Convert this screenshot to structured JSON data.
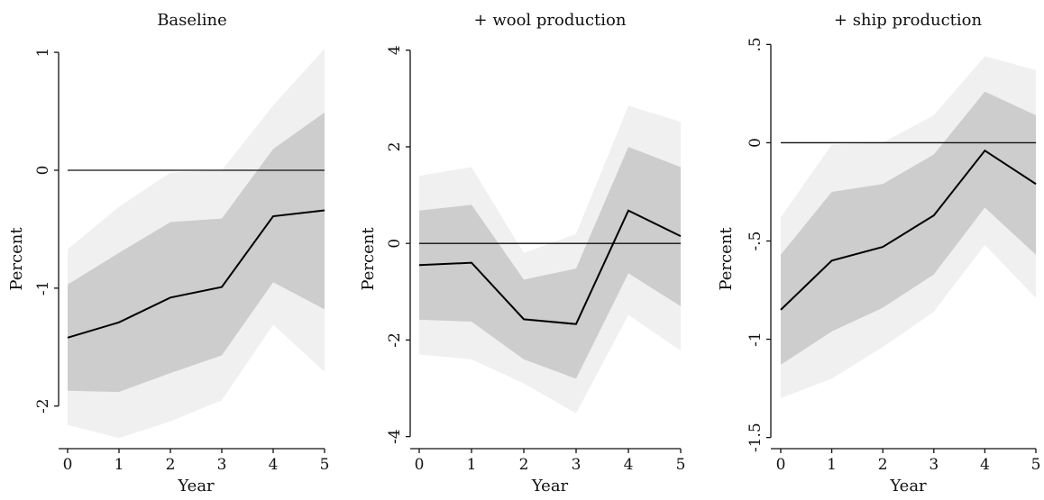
{
  "chart_data": [
    {
      "type": "line",
      "title": "Baseline",
      "xlabel": "Year",
      "ylabel": "Percent",
      "x": [
        0,
        1,
        2,
        3,
        4,
        5
      ],
      "xlim": [
        0,
        5
      ],
      "ylim": [
        -2.3,
        1.1
      ],
      "x_ticks": [
        "0",
        "1",
        "2",
        "3",
        "4",
        "5"
      ],
      "y_ticks": [
        {
          "value": -2,
          "label": "-2"
        },
        {
          "value": -1,
          "label": "-1"
        },
        {
          "value": 0,
          "label": "0"
        },
        {
          "value": 1,
          "label": "1"
        }
      ],
      "reference_line": 0,
      "series": [
        {
          "role": "estimate",
          "values": [
            -1.42,
            -1.29,
            -1.08,
            -0.99,
            -0.39,
            -0.34
          ]
        }
      ],
      "bands": [
        {
          "level": "outer",
          "lower": [
            -2.16,
            -2.27,
            -2.13,
            -1.95,
            -1.31,
            -1.71
          ],
          "upper": [
            -0.67,
            -0.31,
            -0.02,
            0.0,
            0.55,
            1.03
          ],
          "color": "#f0f0f0"
        },
        {
          "level": "inner",
          "lower": [
            -1.87,
            -1.88,
            -1.72,
            -1.57,
            -0.95,
            -1.18
          ],
          "upper": [
            -0.97,
            -0.7,
            -0.44,
            -0.41,
            0.18,
            0.49
          ],
          "color": "#cdcdcd"
        }
      ],
      "grid": false,
      "legend": "none"
    },
    {
      "type": "line",
      "title": "+ wool production",
      "xlabel": "Year",
      "ylabel": "Percent",
      "x": [
        0,
        1,
        2,
        3,
        4,
        5
      ],
      "xlim": [
        0,
        5
      ],
      "ylim": [
        -4.1,
        4.2
      ],
      "x_ticks": [
        "0",
        "1",
        "2",
        "3",
        "4",
        "5"
      ],
      "y_ticks": [
        {
          "value": -4,
          "label": "-4"
        },
        {
          "value": -2,
          "label": "-2"
        },
        {
          "value": 0,
          "label": "0"
        },
        {
          "value": 2,
          "label": "2"
        },
        {
          "value": 4,
          "label": "4"
        }
      ],
      "reference_line": 0,
      "series": [
        {
          "role": "estimate",
          "values": [
            -0.45,
            -0.4,
            -1.57,
            -1.67,
            0.68,
            0.15
          ]
        }
      ],
      "bands": [
        {
          "level": "outer",
          "lower": [
            -2.3,
            -2.4,
            -2.9,
            -3.52,
            -1.48,
            -2.22
          ],
          "upper": [
            1.4,
            1.58,
            -0.2,
            0.2,
            2.85,
            2.52
          ],
          "color": "#f0f0f0"
        },
        {
          "level": "inner",
          "lower": [
            -1.58,
            -1.62,
            -2.4,
            -2.8,
            -0.62,
            -1.3
          ],
          "upper": [
            0.68,
            0.8,
            -0.75,
            -0.52,
            2.0,
            1.58
          ],
          "color": "#cdcdcd"
        }
      ],
      "grid": false,
      "legend": "none"
    },
    {
      "type": "line",
      "title": "+ ship production",
      "xlabel": "Year",
      "ylabel": "Percent",
      "x": [
        0,
        1,
        2,
        3,
        4,
        5
      ],
      "xlim": [
        0,
        5
      ],
      "ylim": [
        -1.52,
        0.52
      ],
      "x_ticks": [
        "0",
        "1",
        "2",
        "3",
        "4",
        "5"
      ],
      "y_ticks": [
        {
          "value": -1.5,
          "label": "-1.5"
        },
        {
          "value": -1,
          "label": "-1"
        },
        {
          "value": -0.5,
          "label": "-.5"
        },
        {
          "value": 0,
          "label": "0"
        },
        {
          "value": 0.5,
          "label": ".5"
        }
      ],
      "reference_line": 0,
      "series": [
        {
          "role": "estimate",
          "values": [
            -0.85,
            -0.6,
            -0.53,
            -0.37,
            -0.04,
            -0.21
          ]
        }
      ],
      "bands": [
        {
          "level": "outer",
          "lower": [
            -1.3,
            -1.2,
            -1.04,
            -0.86,
            -0.52,
            -0.79
          ],
          "upper": [
            -0.38,
            -0.01,
            0.0,
            0.14,
            0.44,
            0.37
          ],
          "color": "#f0f0f0"
        },
        {
          "level": "inner",
          "lower": [
            -1.13,
            -0.96,
            -0.84,
            -0.67,
            -0.33,
            -0.57
          ],
          "upper": [
            -0.57,
            -0.25,
            -0.21,
            -0.06,
            0.26,
            0.14
          ],
          "color": "#cdcdcd"
        }
      ],
      "grid": false,
      "legend": "none"
    }
  ]
}
